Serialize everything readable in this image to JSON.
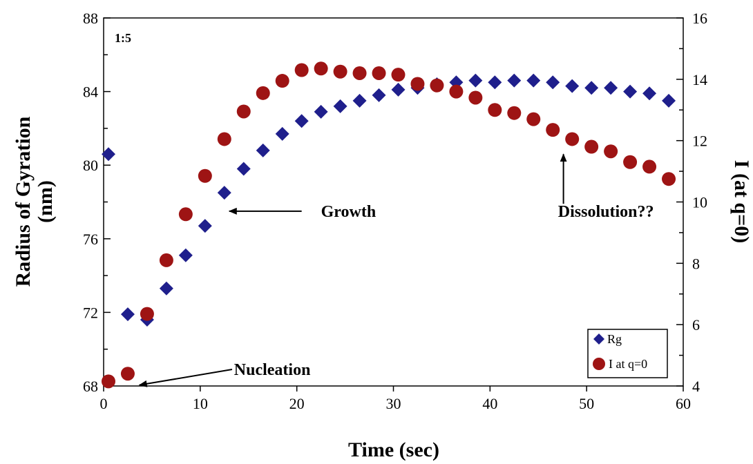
{
  "chart_data": {
    "type": "scatter",
    "panel_label": "1:5",
    "xlabel": "Time (sec)",
    "ylabel_lines": [
      "Radius of Gyration",
      "(nm)"
    ],
    "y2label": "I (at q=0)",
    "xlim": [
      0,
      60
    ],
    "ylim": [
      68,
      88
    ],
    "y2lim": [
      4,
      16
    ],
    "xticks": [
      0,
      10,
      20,
      30,
      40,
      50,
      60
    ],
    "yticks": [
      68,
      72,
      76,
      80,
      84,
      88
    ],
    "y2ticks": [
      4,
      6,
      8,
      10,
      12,
      14,
      16
    ],
    "grid": false,
    "legend_position": "bottom-right",
    "series": [
      {
        "name": "Rg",
        "axis": "left",
        "marker": "diamond",
        "color": "#1f1f8c",
        "x": [
          0.5,
          2.5,
          4.5,
          6.5,
          8.5,
          10.5,
          12.5,
          14.5,
          16.5,
          18.5,
          20.5,
          22.5,
          24.5,
          26.5,
          28.5,
          30.5,
          32.5,
          34.5,
          36.5,
          38.5,
          40.5,
          42.5,
          44.5,
          46.5,
          48.5,
          50.5,
          52.5,
          54.5,
          56.5,
          58.5
        ],
        "y": [
          80.6,
          71.9,
          71.6,
          73.3,
          75.1,
          76.7,
          78.5,
          79.8,
          80.8,
          81.7,
          82.4,
          82.9,
          83.2,
          83.5,
          83.8,
          84.1,
          84.2,
          84.4,
          84.5,
          84.6,
          84.5,
          84.6,
          84.6,
          84.5,
          84.3,
          84.2,
          84.2,
          84.0,
          83.9,
          83.5
        ]
      },
      {
        "name": "I at q=0",
        "axis": "right",
        "marker": "circle",
        "color": "#9e1414",
        "x": [
          0.5,
          2.5,
          4.5,
          6.5,
          8.5,
          10.5,
          12.5,
          14.5,
          16.5,
          18.5,
          20.5,
          22.5,
          24.5,
          26.5,
          28.5,
          30.5,
          32.5,
          34.5,
          36.5,
          38.5,
          40.5,
          42.5,
          44.5,
          46.5,
          48.5,
          50.5,
          52.5,
          54.5,
          56.5,
          58.5
        ],
        "y": [
          4.15,
          4.4,
          6.35,
          8.1,
          9.6,
          10.85,
          12.05,
          12.95,
          13.55,
          13.95,
          14.3,
          14.35,
          14.25,
          14.2,
          14.2,
          14.15,
          13.85,
          13.8,
          13.6,
          13.4,
          13.0,
          12.9,
          12.7,
          12.35,
          12.05,
          11.8,
          11.65,
          11.3,
          11.15,
          10.75
        ]
      }
    ],
    "annotations": [
      {
        "text": "Growth",
        "x": 22.5,
        "y": 77.5,
        "arrow_from": [
          20.5,
          77.5
        ],
        "arrow_to": [
          13.0,
          77.5
        ]
      },
      {
        "text": "Dissolution??",
        "x": 52,
        "y": 77.5,
        "arrow_from": [
          47.6,
          77.9
        ],
        "arrow_to": [
          47.6,
          80.6
        ]
      },
      {
        "text": "Nucleation",
        "x": 13.5,
        "y": 68.9,
        "arrow_from": [
          13.3,
          68.9
        ],
        "arrow_to": [
          3.7,
          68.05
        ]
      }
    ]
  }
}
